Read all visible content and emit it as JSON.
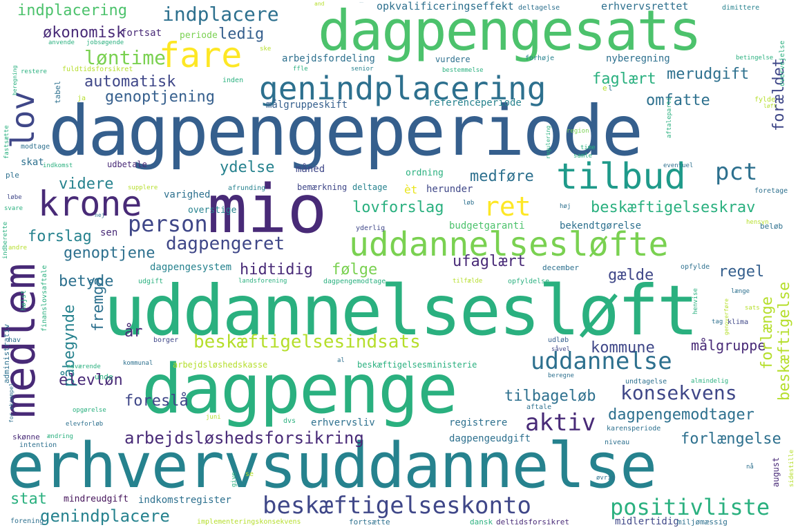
{
  "palette": {
    "purple_dark": "#44135a",
    "purple": "#482a77",
    "indigo": "#3f4788",
    "blue": "#355f8d",
    "blue_teal": "#2d708e",
    "teal": "#26828e",
    "teal_green": "#1f9a8a",
    "green": "#2ab07f",
    "green_light": "#4cc26c",
    "lime": "#7ad151",
    "yellow_green": "#b5de2b",
    "yellow": "#e9e51a",
    "yellow_bright": "#fde725"
  },
  "words": [
    {
      "text": "dagpengeperiode",
      "color": "#355f8d"
    },
    {
      "text": "erhvervsuddannelse",
      "color": "#26828e"
    },
    {
      "text": "uddannelsesløft",
      "color": "#2ab07f"
    },
    {
      "text": "dagpengesats",
      "color": "#4cc26c"
    },
    {
      "text": "dagpenge",
      "color": "#2ab07f"
    },
    {
      "text": "mio",
      "color": "#482a77"
    },
    {
      "text": "uddannelsesløfte",
      "color": "#7ad151"
    },
    {
      "text": "medlem",
      "color": "#482a77"
    },
    {
      "text": "genindplacering",
      "color": "#2d708e"
    },
    {
      "text": "tilbud",
      "color": "#1f9a8a"
    },
    {
      "text": "krone",
      "color": "#482a77"
    },
    {
      "text": "fare",
      "color": "#fde725"
    },
    {
      "text": "lov",
      "color": "#3f4788"
    },
    {
      "text": "ret",
      "color": "#fde725"
    },
    {
      "text": "person",
      "color": "#3f4788"
    },
    {
      "text": "pct",
      "color": "#2d708e"
    },
    {
      "text": "beskæftigelsesindsats",
      "color": "#b5de2b"
    },
    {
      "text": "uddannelse",
      "color": "#2d708e"
    },
    {
      "text": "beskæftigelseskonto",
      "color": "#3f4788"
    },
    {
      "text": "positivliste",
      "color": "#2ab07f"
    },
    {
      "text": "indplacere",
      "color": "#2d708e"
    },
    {
      "text": "dagpengeret",
      "color": "#3f4788"
    },
    {
      "text": "aktiv",
      "color": "#482a77"
    },
    {
      "text": "konsekvens",
      "color": "#3f4788"
    },
    {
      "text": "arbejdsløshedsforsikring",
      "color": "#482a77"
    },
    {
      "text": "genindplacere",
      "color": "#26828e"
    },
    {
      "text": "automatisk",
      "color": "#3f4788"
    },
    {
      "text": "løntime",
      "color": "#7ad151"
    },
    {
      "text": "økonomisk",
      "color": "#482a77"
    },
    {
      "text": "indplacering",
      "color": "#4cc26c"
    },
    {
      "text": "ledig",
      "color": "#355f8d"
    },
    {
      "text": "genoptjening",
      "color": "#355f8d"
    },
    {
      "text": "faglært",
      "color": "#2ab07f"
    },
    {
      "text": "merudgift",
      "color": "#2d708e"
    },
    {
      "text": "omfatte",
      "color": "#2d708e"
    },
    {
      "text": "forældet",
      "color": "#3f4788"
    },
    {
      "text": "ydelse",
      "color": "#26828e"
    },
    {
      "text": "medføre",
      "color": "#2d708e"
    },
    {
      "text": "videre",
      "color": "#26828e"
    },
    {
      "text": "lovforslag",
      "color": "#2ab07f"
    },
    {
      "text": "beskæftigelseskrav",
      "color": "#2ab07f"
    },
    {
      "text": "forslag",
      "color": "#26828e"
    },
    {
      "text": "genoptjene",
      "color": "#2d708e"
    },
    {
      "text": "hidtidig",
      "color": "#482a77"
    },
    {
      "text": "følge",
      "color": "#7ad151"
    },
    {
      "text": "ufaglært",
      "color": "#482a77"
    },
    {
      "text": "regel",
      "color": "#355f8d"
    },
    {
      "text": "gælde",
      "color": "#3f4788"
    },
    {
      "text": "betyde",
      "color": "#2d708e"
    },
    {
      "text": "fremgå",
      "color": "#2d708e"
    },
    {
      "text": "år",
      "color": "#482a77"
    },
    {
      "text": "påbegynde",
      "color": "#26828e"
    },
    {
      "text": "kommune",
      "color": "#3f4788"
    },
    {
      "text": "målgruppe",
      "color": "#482a77"
    },
    {
      "text": "forlænge",
      "color": "#b5de2b"
    },
    {
      "text": "beskæftigelse",
      "color": "#b5de2b"
    },
    {
      "text": "elevløn",
      "color": "#482a77"
    },
    {
      "text": "tilbageløb",
      "color": "#2d708e"
    },
    {
      "text": "foreslå",
      "color": "#3f4788"
    },
    {
      "text": "dagpengemodtager",
      "color": "#2d708e"
    },
    {
      "text": "forlængelse",
      "color": "#2d708e"
    },
    {
      "text": "stat",
      "color": "#2ab07f"
    },
    {
      "text": "nyberegning",
      "color": "#2d708e"
    },
    {
      "text": "erhvervsrettet",
      "color": "#2d708e"
    },
    {
      "text": "opkvalificeringseffekt",
      "color": "#2d708e"
    },
    {
      "text": "arbejdsfordeling",
      "color": "#2d708e"
    },
    {
      "text": "målgruppeskift",
      "color": "#355f8d"
    },
    {
      "text": "referenceperiode",
      "color": "#26828e"
    },
    {
      "text": "fortsat",
      "color": "#482a77"
    },
    {
      "text": "periode",
      "color": "#7ad151"
    },
    {
      "text": "varighed",
      "color": "#2d708e"
    },
    {
      "text": "overstige",
      "color": "#26828e"
    },
    {
      "text": "sen",
      "color": "#482a77"
    },
    {
      "text": "budgetgaranti",
      "color": "#4cc26c"
    },
    {
      "text": "bekendtgørelse",
      "color": "#2d708e"
    },
    {
      "text": "dagpengesystem",
      "color": "#26828e"
    },
    {
      "text": "dagpengeudgift",
      "color": "#2d708e"
    },
    {
      "text": "erhvervsliv",
      "color": "#2d708e"
    },
    {
      "text": "registrere",
      "color": "#2d708e"
    },
    {
      "text": "indkomstregister",
      "color": "#2d708e"
    },
    {
      "text": "mindreudgift",
      "color": "#44135a"
    },
    {
      "text": "midlertidig",
      "color": "#3f4788"
    },
    {
      "text": "måned",
      "color": "#3f4788"
    },
    {
      "text": "bemærkning",
      "color": "#3f4788"
    },
    {
      "text": "deltage",
      "color": "#26828e"
    },
    {
      "text": "herunder",
      "color": "#3f4788"
    },
    {
      "text": "èt",
      "color": "#e9e51a"
    },
    {
      "text": "ordning",
      "color": "#2ab07f"
    },
    {
      "text": "udbetale",
      "color": "#482a77"
    },
    {
      "text": "skat",
      "color": "#2d708e"
    },
    {
      "text": "indkomst",
      "color": "#2ab07f"
    },
    {
      "text": "modtage",
      "color": "#2d708e"
    },
    {
      "text": "tabel",
      "color": "#2d708e"
    },
    {
      "text": "ja",
      "color": "#b5de2b"
    },
    {
      "text": "inden",
      "color": "#2ab07f"
    },
    {
      "text": "senior",
      "color": "#26828e"
    },
    {
      "text": "ffle",
      "color": "#2ab07f"
    },
    {
      "text": "restere",
      "color": "#2ab07f"
    },
    {
      "text": "beregning",
      "color": "#2ab07f"
    },
    {
      "text": "fuldtidsforsikret",
      "color": "#b5de2b"
    },
    {
      "text": "jobsøgende",
      "color": "#2ab07f"
    },
    {
      "text": "anvende",
      "color": "#2ab07f"
    },
    {
      "text": "and",
      "color": "#b5de2b"
    },
    {
      "text": "deltagelse",
      "color": "#2d708e"
    },
    {
      "text": "dimittere",
      "color": "#26828e"
    },
    {
      "text": "betingelse",
      "color": "#2ab07f"
    },
    {
      "text": "overvejelse",
      "color": "#2ab07f"
    },
    {
      "text": "forhøje",
      "color": "#26828e"
    },
    {
      "text": "bestemmelse",
      "color": "#2ab07f"
    },
    {
      "text": "vurdere",
      "color": "#2d708e"
    },
    {
      "text": "fylde",
      "color": "#b5de2b"
    },
    {
      "text": "løft",
      "color": "#b5de2b"
    },
    {
      "text": "region",
      "color": "#7ad151"
    },
    {
      "text": "time",
      "color": "#2ab07f"
    },
    {
      "text": "samle",
      "color": "#2ab07f"
    },
    {
      "text": "eventuel",
      "color": "#2d708e"
    },
    {
      "text": "aftaleparti",
      "color": "#2ab07f"
    },
    {
      "text": "regulering",
      "color": "#2ab07f"
    },
    {
      "text": "foretage",
      "color": "#2d708e"
    },
    {
      "text": "høj",
      "color": "#2d708e"
    },
    {
      "text": "hensyn",
      "color": "#b5de2b"
    },
    {
      "text": "beløb",
      "color": "#2d708e"
    },
    {
      "text": "yderlig",
      "color": "#3f4788"
    },
    {
      "text": "løb",
      "color": "#2d708e"
    },
    {
      "text": "supplere",
      "color": "#b5de2b"
    },
    {
      "text": "afrunding",
      "color": "#26828e"
    },
    {
      "text": "ple",
      "color": "#2d708e"
    },
    {
      "text": "fastsætte",
      "color": "#2ab07f"
    },
    {
      "text": "løbe",
      "color": "#3f4788"
    },
    {
      "text": "svare",
      "color": "#2ab07f"
    },
    {
      "text": "indberette",
      "color": "#2ab07f"
    },
    {
      "text": "andre",
      "color": "#b5de2b"
    },
    {
      "text": "nej",
      "color": "#2d708e"
    },
    {
      "text": "højst",
      "color": "#2ab07f"
    },
    {
      "text": "administrativ",
      "color": "#2d708e"
    },
    {
      "text": "finanslovsaftale",
      "color": "#2ab07f"
    },
    {
      "text": "hav",
      "color": "#2d708e"
    },
    {
      "text": "udgift",
      "color": "#2ab07f"
    },
    {
      "text": "landsforening",
      "color": "#2ab07f"
    },
    {
      "text": "dagpengemodtage",
      "color": "#2ab07f"
    },
    {
      "text": "tilfælde",
      "color": "#b5de2b"
    },
    {
      "text": "opfyldelse",
      "color": "#2ab07f"
    },
    {
      "text": "december",
      "color": "#2d708e"
    },
    {
      "text": "opfylde",
      "color": "#2d708e"
    },
    {
      "text": "længe",
      "color": "#2d708e"
    },
    {
      "text": "sats",
      "color": "#b5de2b"
    },
    {
      "text": "henvise",
      "color": "#2ab07f"
    },
    {
      "text": "genoverføre",
      "color": "#b5de2b"
    },
    {
      "text": "klima",
      "color": "#3f4788"
    },
    {
      "text": "tag",
      "color": "#2d708e"
    },
    {
      "text": "borger",
      "color": "#3f4788"
    },
    {
      "text": "udløb",
      "color": "#355f8d"
    },
    {
      "text": "såvel",
      "color": "#3f4788"
    },
    {
      "text": "arbejdsløshedskasse",
      "color": "#b5de2b"
    },
    {
      "text": "beskæftigelsesministerie",
      "color": "#2ab07f"
    },
    {
      "text": "al",
      "color": "#2d708e"
    },
    {
      "text": "kommunal",
      "color": "#2d708e"
    },
    {
      "text": "unde",
      "color": "#2ab07f"
    },
    {
      "text": "nuværende",
      "color": "#2ab07f"
    },
    {
      "text": "beregne",
      "color": "#2d708e"
    },
    {
      "text": "undtagelse",
      "color": "#2d708e"
    },
    {
      "text": "almindelig",
      "color": "#2ab07f"
    },
    {
      "text": "opgørelse",
      "color": "#2ab07f"
    },
    {
      "text": "elevforløb",
      "color": "#2d708e"
    },
    {
      "text": "juni",
      "color": "#b5de2b"
    },
    {
      "text": "aftale",
      "color": "#2d708e"
    },
    {
      "text": "dvs",
      "color": "#2ab07f"
    },
    {
      "text": "karensperiode",
      "color": "#2d708e"
    },
    {
      "text": "skønne",
      "color": "#482a77"
    },
    {
      "text": "ændring",
      "color": "#2ab07f"
    },
    {
      "text": "intention",
      "color": "#2d708e"
    },
    {
      "text": "niveau",
      "color": "#2d708e"
    },
    {
      "text": "sidestille",
      "color": "#b5de2b"
    },
    {
      "text": "august",
      "color": "#482a77"
    },
    {
      "text": "give",
      "color": "#2ab07f"
    },
    {
      "text": "se",
      "color": "#b5de2b"
    },
    {
      "text": "øvrig",
      "color": "#2d708e"
    },
    {
      "text": "nå",
      "color": "#2d708e"
    },
    {
      "text": "forening",
      "color": "#2d708e"
    },
    {
      "text": "implementeringskonsekvens",
      "color": "#b5de2b"
    },
    {
      "text": "fortsætte",
      "color": "#2d708e"
    },
    {
      "text": "dansk",
      "color": "#2ab07f"
    },
    {
      "text": "deltidsforsikret",
      "color": "#482a77"
    },
    {
      "text": "miljømæssig",
      "color": "#2d708e"
    },
    {
      "text": "for_eksempel",
      "color": "#2d708e"
    },
    {
      "text": "ske",
      "color": "#b5de2b"
    },
    {
      "text": "e",
      "color": "#b5de2b"
    },
    {
      "text": "l",
      "color": "#2d708e"
    }
  ]
}
